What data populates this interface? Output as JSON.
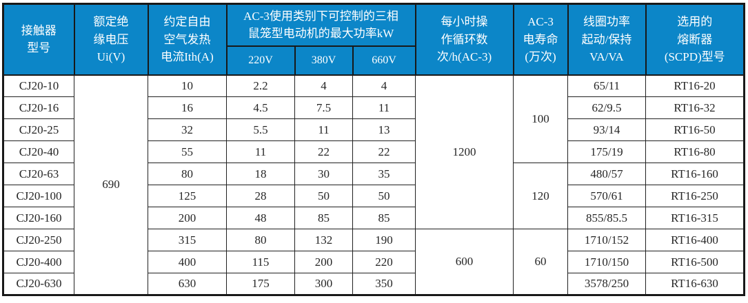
{
  "page": {
    "background": "#ffffff",
    "description_colors": {
      "header_bg": "#0c86c8",
      "header_text": "#ffffff",
      "border": "#181818",
      "cell_text": "#262626"
    }
  },
  "table": {
    "header": {
      "model": "接触器\n型号",
      "insulation": "额定绝\n缘电压\nUi(V)",
      "thermal": "约定自由\n空气发热\n电流Ith(A)",
      "power_group": "AC-3使用类别下可控制的三相\n鼠笼型电动机的最大功率kW",
      "voltages": [
        "220V",
        "380V",
        "660V"
      ],
      "cycles": "每小时操\n作循环数\n次/h(AC-3)",
      "life": "AC-3\n电寿命\n(万次)",
      "coil": "线圈功率\n起动/保持\nVA/VA",
      "fuse": "选用的\n熔断器\n(SCPD)型号"
    },
    "insulation_voltage": "690",
    "cycle_groups": [
      {
        "value": "1200",
        "rowspan": 7
      },
      {
        "value": "600",
        "rowspan": 3
      }
    ],
    "life_groups": [
      {
        "value": "100",
        "rowspan": 4
      },
      {
        "value": "120",
        "rowspan": 3
      },
      {
        "value": "60",
        "rowspan": 3
      }
    ],
    "rows": [
      {
        "model": "CJ20-10",
        "ith": "10",
        "p220": "2.2",
        "p380": "4",
        "p660": "4",
        "coil": "65/11",
        "fuse": "RT16-20"
      },
      {
        "model": "CJ20-16",
        "ith": "16",
        "p220": "4.5",
        "p380": "7.5",
        "p660": "11",
        "coil": "62/9.5",
        "fuse": "RT16-32"
      },
      {
        "model": "CJ20-25",
        "ith": "32",
        "p220": "5.5",
        "p380": "11",
        "p660": "13",
        "coil": "93/14",
        "fuse": "RT16-50"
      },
      {
        "model": "CJ20-40",
        "ith": "55",
        "p220": "11",
        "p380": "22",
        "p660": "22",
        "coil": "175/19",
        "fuse": "RT16-80"
      },
      {
        "model": "CJ20-63",
        "ith": "80",
        "p220": "18",
        "p380": "30",
        "p660": "35",
        "coil": "480/57",
        "fuse": "RT16-160"
      },
      {
        "model": "CJ20-100",
        "ith": "125",
        "p220": "28",
        "p380": "50",
        "p660": "50",
        "coil": "570/61",
        "fuse": "RT16-250"
      },
      {
        "model": "CJ20-160",
        "ith": "200",
        "p220": "48",
        "p380": "85",
        "p660": "85",
        "coil": "855/85.5",
        "fuse": "RT16-315"
      },
      {
        "model": "CJ20-250",
        "ith": "315",
        "p220": "80",
        "p380": "132",
        "p660": "190",
        "coil": "1710/152",
        "fuse": "RT16-400"
      },
      {
        "model": "CJ20-400",
        "ith": "400",
        "p220": "115",
        "p380": "200",
        "p660": "220",
        "coil": "1710/150",
        "fuse": "RT16-500"
      },
      {
        "model": "CJ20-630",
        "ith": "630",
        "p220": "175",
        "p380": "300",
        "p660": "350",
        "coil": "3578/250",
        "fuse": "RT16-630"
      }
    ]
  }
}
